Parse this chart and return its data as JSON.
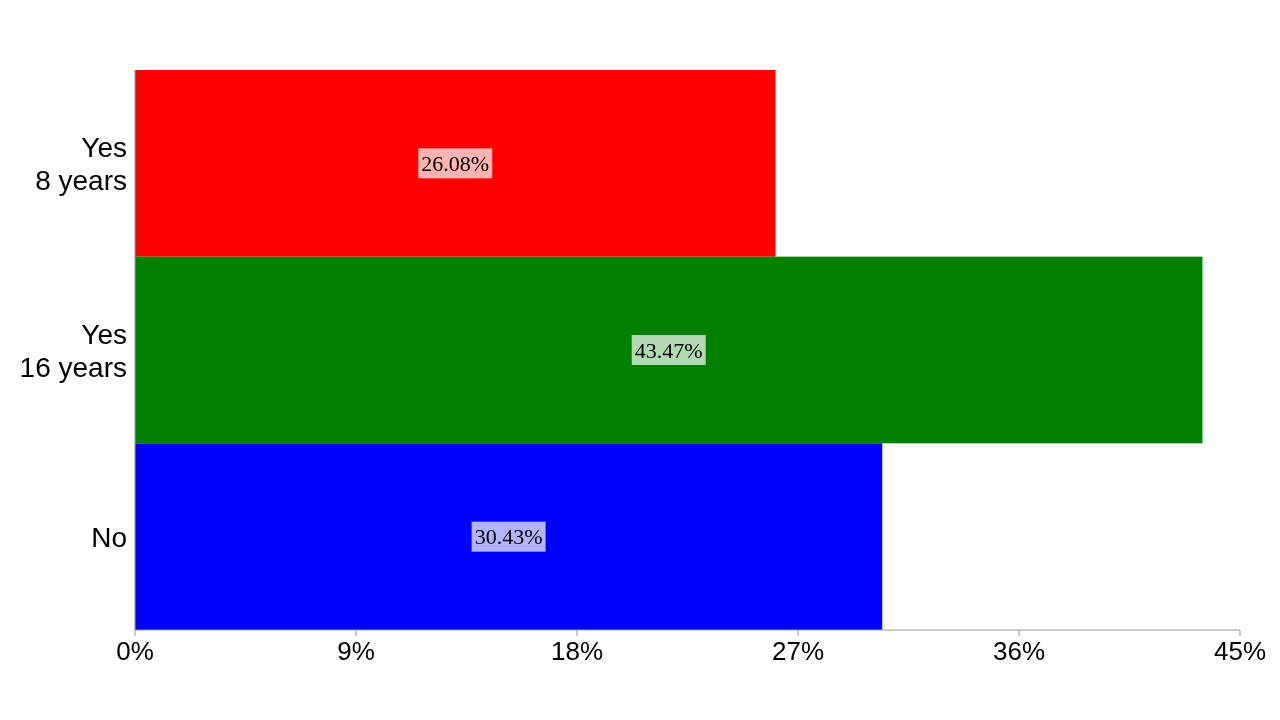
{
  "chart_data": {
    "type": "bar",
    "orientation": "horizontal",
    "categories": [
      "Yes\n8 years",
      "Yes\n16 years",
      "No"
    ],
    "values": [
      26.08,
      43.47,
      30.43
    ],
    "colors": [
      "#ff0000",
      "#008000",
      "#0000ff"
    ],
    "value_labels": [
      "26.08%",
      "43.47%",
      "30.43%"
    ],
    "xlim": [
      0,
      45
    ],
    "xticks": [
      {
        "value": 0,
        "label": "0%"
      },
      {
        "value": 9,
        "label": "9%"
      },
      {
        "value": 18,
        "label": "18%"
      },
      {
        "value": 27,
        "label": "27%"
      },
      {
        "value": 36,
        "label": "36%"
      },
      {
        "value": 45,
        "label": "45%"
      }
    ]
  }
}
